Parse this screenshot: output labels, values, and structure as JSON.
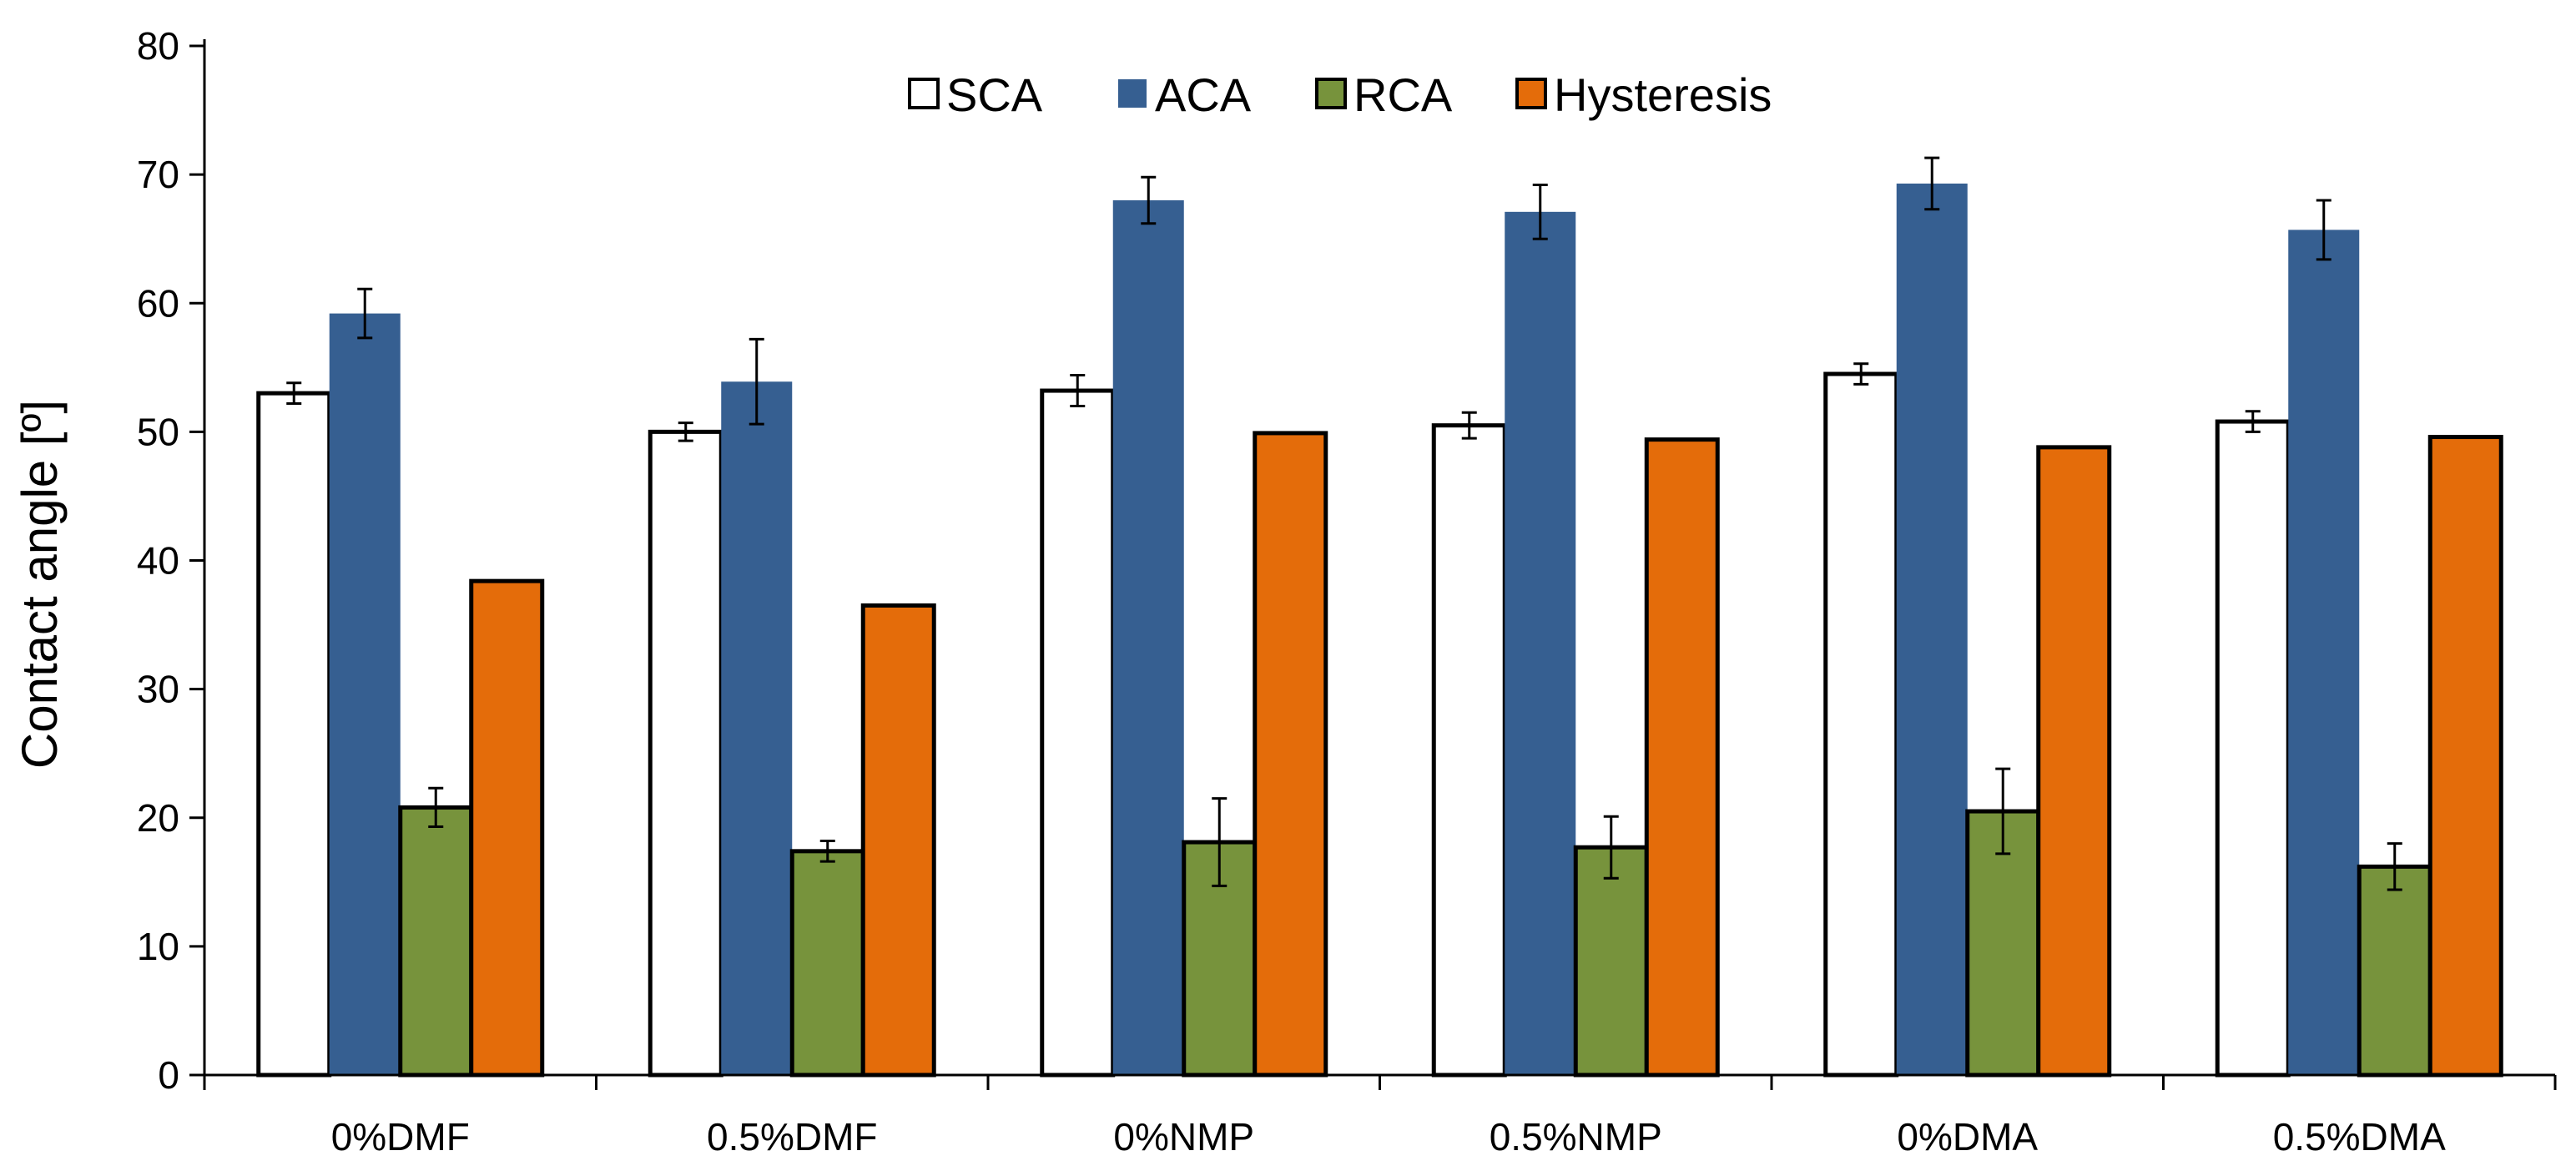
{
  "chart_data": {
    "type": "bar",
    "ylabel": "Contact angle [º]",
    "xlabel": "",
    "title": "",
    "ylim": [
      0,
      80
    ],
    "yticks": [
      0,
      10,
      20,
      30,
      40,
      50,
      60,
      70,
      80
    ],
    "grid": false,
    "legend_position": "top-center",
    "categories": [
      "0%DMF",
      "0.5%DMF",
      "0%NMP",
      "0.5%NMP",
      "0%DMA",
      "0.5%DMA"
    ],
    "series": [
      {
        "name": "SCA",
        "color": "#ffffff",
        "outline": true,
        "values": [
          53.0,
          50.0,
          53.2,
          50.5,
          54.5,
          50.8
        ],
        "errors": [
          0.8,
          0.7,
          1.2,
          1.0,
          0.8,
          0.8
        ]
      },
      {
        "name": "ACA",
        "color": "#365f91",
        "outline": false,
        "values": [
          59.2,
          53.9,
          68.0,
          67.1,
          69.3,
          65.7
        ],
        "errors": [
          1.9,
          3.3,
          1.8,
          2.1,
          2.0,
          2.3
        ]
      },
      {
        "name": "RCA",
        "color": "#77933c",
        "outline": true,
        "values": [
          20.8,
          17.4,
          18.1,
          17.7,
          20.5,
          16.2
        ],
        "errors": [
          1.5,
          0.8,
          3.4,
          2.4,
          3.3,
          1.8
        ]
      },
      {
        "name": "Hysteresis",
        "color": "#e46c0a",
        "outline": true,
        "values": [
          38.4,
          36.5,
          49.9,
          49.4,
          48.8,
          49.6
        ],
        "errors": null
      }
    ]
  }
}
